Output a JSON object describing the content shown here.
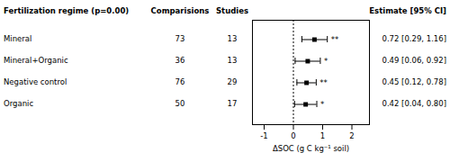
{
  "chart_data": {
    "type": "forest",
    "title": "Fertilization regime (p=0.00)",
    "columns": [
      "Comparisions",
      "Studies",
      "Estimate [95% CI]"
    ],
    "categories": [
      "Mineral",
      "Mineral+Organic",
      "Negative control",
      "Organic"
    ],
    "comparisons": [
      73,
      36,
      76,
      50
    ],
    "studies": [
      13,
      13,
      29,
      17
    ],
    "values": [
      0.72,
      0.49,
      0.45,
      0.42
    ],
    "lo": [
      0.29,
      0.06,
      0.12,
      0.04
    ],
    "hi": [
      1.16,
      0.92,
      0.78,
      0.8
    ],
    "sig": [
      "**",
      "*",
      "**",
      "*"
    ],
    "estimate_labels": [
      "0.72 [0.29, 1.16]",
      "0.49 [0.06, 0.92]",
      "0.45 [0.12, 0.78]",
      "0.42 [0.04, 0.80]"
    ],
    "vline": 0,
    "xlabel": "ΔSOC (g C kg⁻¹ soil)",
    "xlim": [
      -1.4,
      2.6
    ],
    "xticks": [
      -1,
      0,
      1,
      2
    ]
  }
}
